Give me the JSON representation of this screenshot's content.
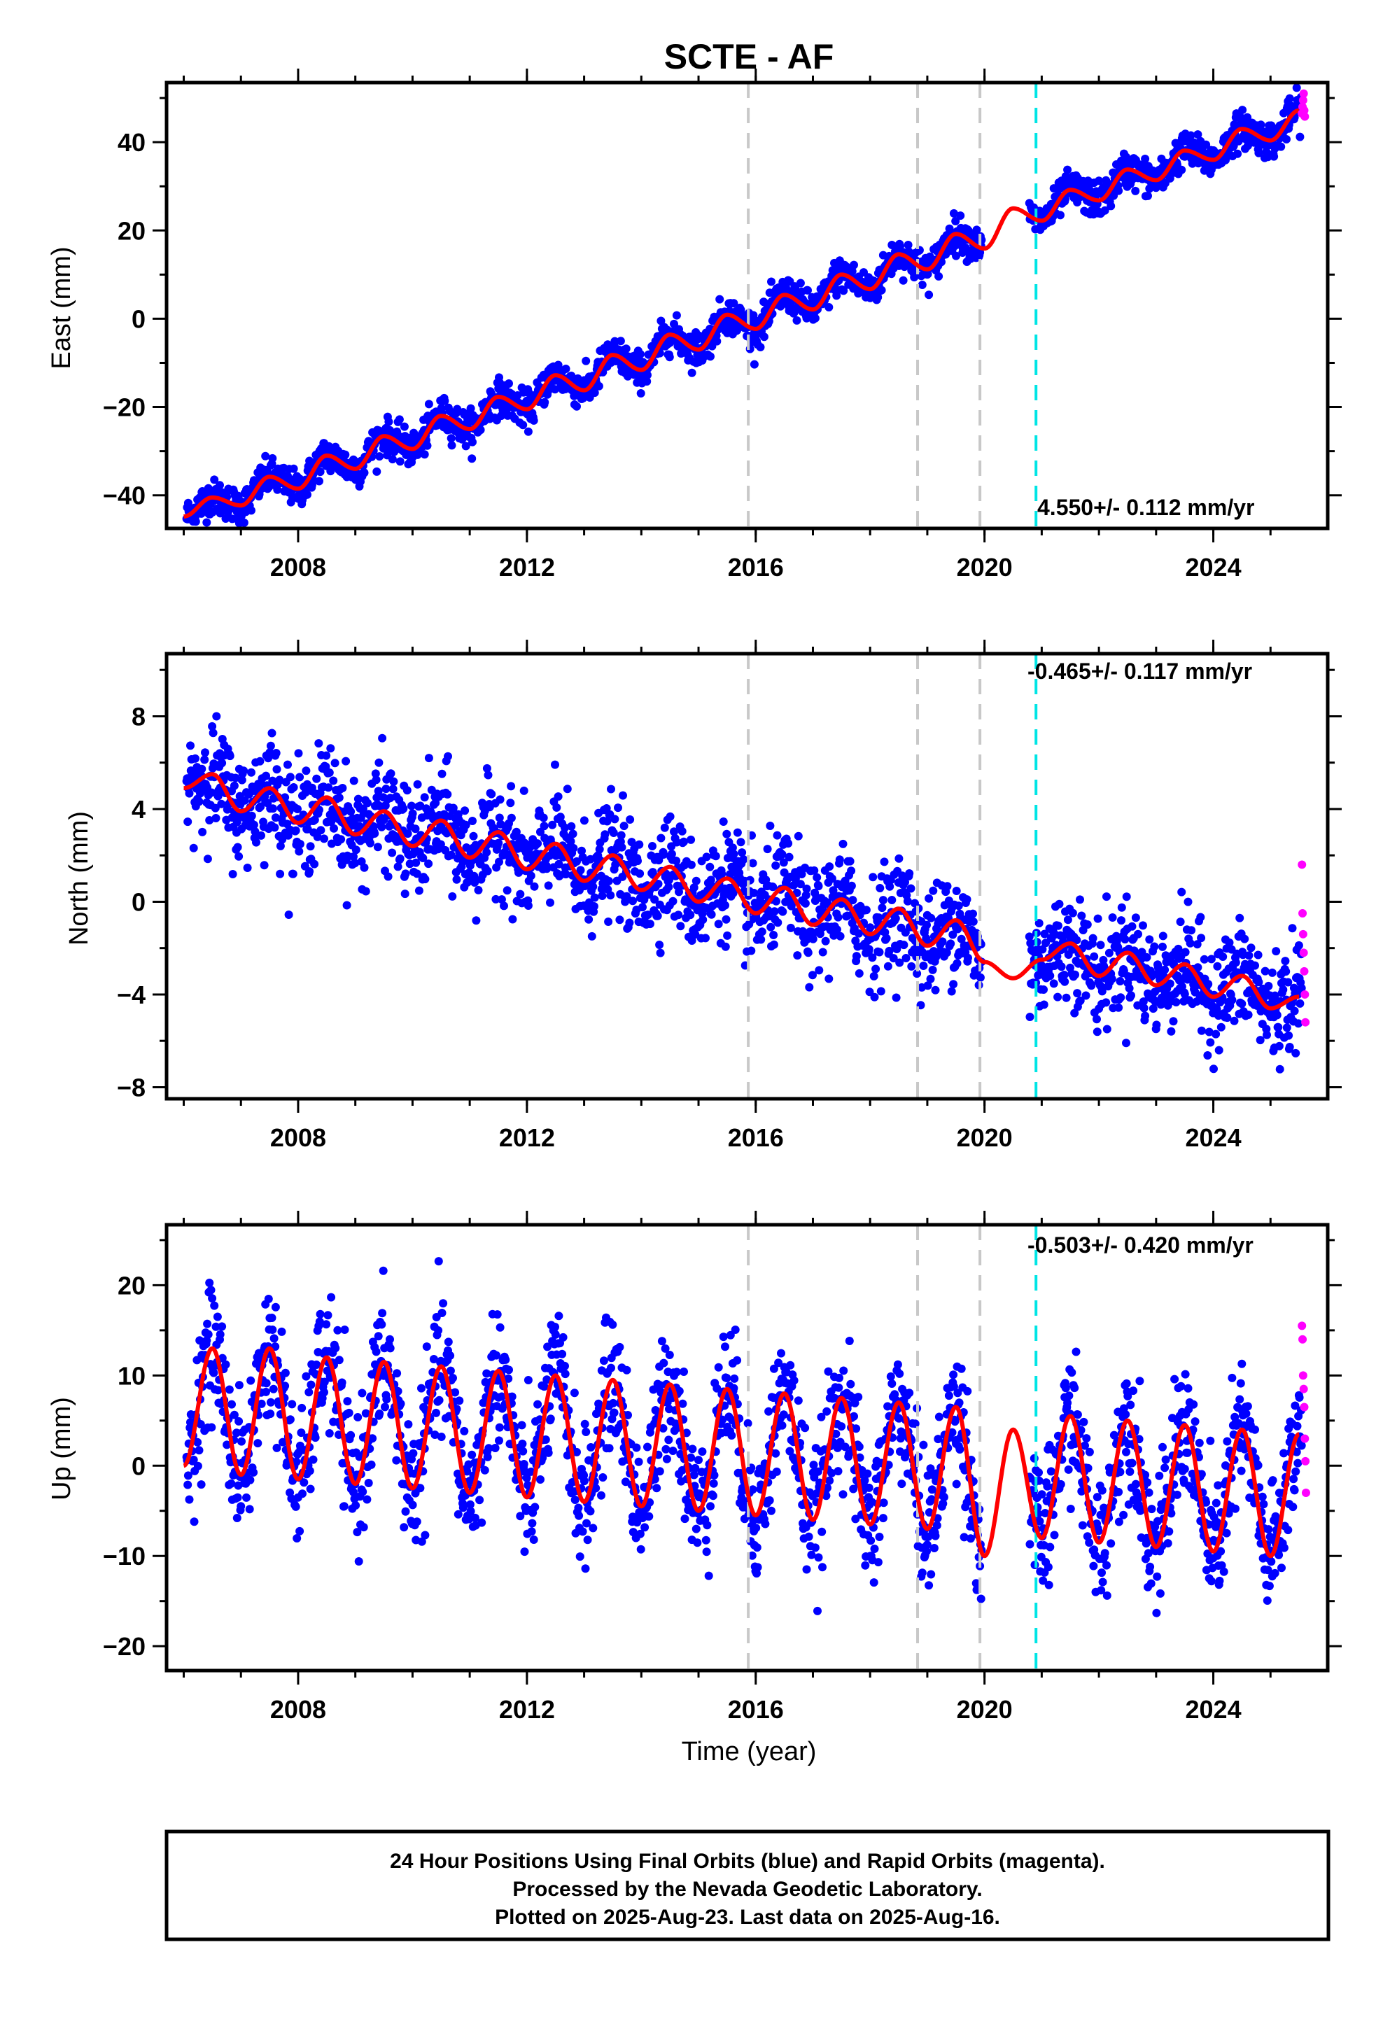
{
  "figure": {
    "title": "SCTE - AF",
    "footer": {
      "line1": "24 Hour Positions Using Final Orbits (blue) and Rapid Orbits (magenta).",
      "line2": "Processed by the Nevada Geodetic Laboratory.",
      "line3": "Plotted on 2025-Aug-23. Last data on 2025-Aug-16."
    }
  },
  "chart_data": [
    {
      "type": "scatter",
      "panel": "east",
      "ylabel": "East (mm)",
      "xlabel": "",
      "xlim": [
        2005.7,
        2026.0
      ],
      "ylim": [
        -47.5,
        53.5
      ],
      "xticks": [
        2008,
        2012,
        2016,
        2020,
        2024
      ],
      "yticks": [
        -40,
        -20,
        0,
        20,
        40
      ],
      "grid": false,
      "rate_label": "4.550+/- 0.112 mm/yr",
      "rate_label_position": "bottom-right",
      "dashed_lines": [
        {
          "x": 2015.87,
          "color": "#c8c8c8"
        },
        {
          "x": 2018.83,
          "color": "#c8c8c8"
        },
        {
          "x": 2019.92,
          "color": "#c8c8c8"
        },
        {
          "x": 2020.9,
          "color": "#00e5e5"
        }
      ],
      "final_orbits_color": "#0000ff",
      "rapid_orbits_color": "#ff00ff",
      "model_color": "#ff0000",
      "model": {
        "x": [
          2006.0,
          2006.5,
          2007.0,
          2007.5,
          2008.0,
          2008.5,
          2009.0,
          2009.5,
          2010.0,
          2010.5,
          2011.0,
          2011.5,
          2012.0,
          2012.5,
          2013.0,
          2013.5,
          2014.0,
          2014.5,
          2015.0,
          2015.5,
          2016.0,
          2016.5,
          2017.0,
          2017.5,
          2018.0,
          2018.5,
          2019.0,
          2019.5,
          2020.0,
          2020.5,
          2021.0,
          2021.5,
          2022.0,
          2022.5,
          2023.0,
          2023.5,
          2024.0,
          2024.5,
          2025.0,
          2025.5
        ],
        "y": [
          -44.8,
          -40.5,
          -42.3,
          -35.8,
          -38.5,
          -31.0,
          -34.0,
          -26.6,
          -29.5,
          -22.0,
          -25.0,
          -17.7,
          -20.5,
          -12.8,
          -16.2,
          -8.2,
          -11.6,
          -3.6,
          -7.0,
          0.9,
          -2.3,
          5.4,
          2.1,
          10.0,
          6.7,
          14.6,
          11.2,
          19.2,
          15.9,
          25.0,
          22.2,
          29.2,
          26.8,
          33.8,
          31.4,
          38.1,
          36.0,
          43.0,
          40.4,
          47.2
        ]
      },
      "rapid_points": {
        "x": [
          2025.55,
          2025.56,
          2025.57,
          2025.58,
          2025.59,
          2025.6
        ],
        "y": [
          46.5,
          48.0,
          49.5,
          51.0,
          47.2,
          45.8
        ]
      }
    },
    {
      "type": "scatter",
      "panel": "north",
      "ylabel": "North (mm)",
      "xlabel": "",
      "xlim": [
        2005.7,
        2026.0
      ],
      "ylim": [
        -8.5,
        10.7
      ],
      "xticks": [
        2008,
        2012,
        2016,
        2020,
        2024
      ],
      "yticks": [
        -8,
        -4,
        0,
        4,
        8
      ],
      "grid": false,
      "rate_label": "-0.465+/- 0.117 mm/yr",
      "rate_label_position": "top-right",
      "dashed_lines": [
        {
          "x": 2015.87,
          "color": "#c8c8c8"
        },
        {
          "x": 2018.83,
          "color": "#c8c8c8"
        },
        {
          "x": 2019.92,
          "color": "#c8c8c8"
        },
        {
          "x": 2020.9,
          "color": "#00e5e5"
        }
      ],
      "final_orbits_color": "#0000ff",
      "rapid_orbits_color": "#ff00ff",
      "model_color": "#ff0000",
      "model": {
        "x": [
          2006.0,
          2006.5,
          2007.0,
          2007.5,
          2008.0,
          2008.5,
          2009.0,
          2009.5,
          2010.0,
          2010.5,
          2011.0,
          2011.5,
          2012.0,
          2012.5,
          2013.0,
          2013.5,
          2014.0,
          2014.5,
          2015.0,
          2015.5,
          2016.0,
          2016.5,
          2017.0,
          2017.5,
          2018.0,
          2018.5,
          2019.0,
          2019.5,
          2020.0,
          2020.5,
          2021.0,
          2021.5,
          2022.0,
          2022.5,
          2023.0,
          2023.5,
          2024.0,
          2024.5,
          2025.0,
          2025.5
        ],
        "y": [
          4.9,
          5.5,
          3.9,
          4.9,
          3.4,
          4.5,
          2.9,
          3.9,
          2.4,
          3.5,
          1.9,
          3.0,
          1.4,
          2.5,
          0.9,
          2.0,
          0.5,
          1.5,
          0.0,
          1.0,
          -0.5,
          0.6,
          -1.0,
          0.1,
          -1.4,
          -0.3,
          -1.9,
          -0.8,
          -2.6,
          -3.3,
          -2.5,
          -1.8,
          -3.2,
          -2.2,
          -3.6,
          -2.7,
          -4.1,
          -3.2,
          -4.6,
          -4.1
        ]
      },
      "rapid_points": {
        "x": [
          2025.55,
          2025.56,
          2025.57,
          2025.58,
          2025.59,
          2025.6,
          2025.61
        ],
        "y": [
          1.6,
          -0.5,
          -1.4,
          -2.2,
          -3.0,
          -4.0,
          -5.2
        ]
      }
    },
    {
      "type": "scatter",
      "panel": "up",
      "ylabel": "Up (mm)",
      "xlabel": "Time (year)",
      "xlim": [
        2005.7,
        2026.0
      ],
      "ylim": [
        -22.7,
        26.7
      ],
      "xticks": [
        2008,
        2012,
        2016,
        2020,
        2024
      ],
      "yticks": [
        -20,
        -10,
        0,
        10,
        20
      ],
      "grid": false,
      "rate_label": "-0.503+/- 0.420 mm/yr",
      "rate_label_position": "top-right",
      "dashed_lines": [
        {
          "x": 2015.87,
          "color": "#c8c8c8"
        },
        {
          "x": 2018.83,
          "color": "#c8c8c8"
        },
        {
          "x": 2019.92,
          "color": "#c8c8c8"
        },
        {
          "x": 2020.9,
          "color": "#00e5e5"
        }
      ],
      "final_orbits_color": "#0000ff",
      "rapid_orbits_color": "#ff00ff",
      "model_color": "#ff0000",
      "model": {
        "x": [
          2006.0,
          2006.5,
          2007.0,
          2007.5,
          2008.0,
          2008.5,
          2009.0,
          2009.5,
          2010.0,
          2010.5,
          2011.0,
          2011.5,
          2012.0,
          2012.5,
          2013.0,
          2013.5,
          2014.0,
          2014.5,
          2015.0,
          2015.5,
          2016.0,
          2016.5,
          2017.0,
          2017.5,
          2018.0,
          2018.5,
          2019.0,
          2019.5,
          2020.0,
          2020.5,
          2021.0,
          2021.5,
          2022.0,
          2022.5,
          2023.0,
          2023.5,
          2024.0,
          2024.5,
          2025.0,
          2025.5
        ],
        "y": [
          0.0,
          13.0,
          -1.0,
          13.0,
          -1.5,
          12.0,
          -2.0,
          11.5,
          -2.5,
          11.0,
          -3.0,
          10.5,
          -3.5,
          10.0,
          -4.0,
          9.5,
          -4.5,
          9.0,
          -5.0,
          8.5,
          -5.5,
          8.0,
          -6.0,
          7.5,
          -6.5,
          7.0,
          -7.0,
          6.5,
          -10.0,
          4.0,
          -8.0,
          5.5,
          -8.5,
          5.0,
          -9.0,
          4.5,
          -9.5,
          4.0,
          -10.0,
          3.5
        ]
      },
      "rapid_points": {
        "x": [
          2025.55,
          2025.56,
          2025.57,
          2025.58,
          2025.59,
          2025.6,
          2025.61,
          2025.62
        ],
        "y": [
          15.5,
          14.0,
          10.0,
          8.5,
          6.5,
          3.0,
          0.5,
          -3.0
        ]
      }
    }
  ]
}
